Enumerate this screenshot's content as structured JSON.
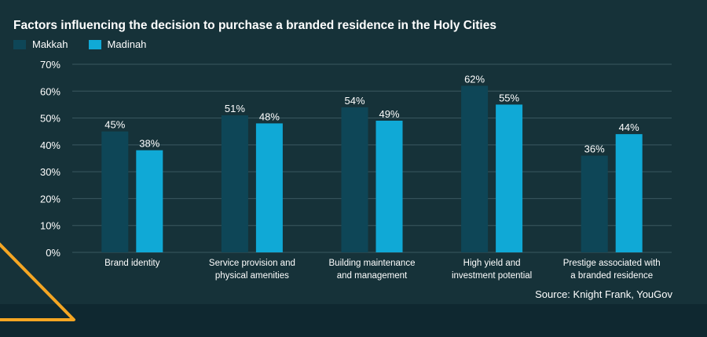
{
  "title": "Factors influencing the decision to purchase a branded residence in the Holy Cities",
  "source": "Source: Knight Frank, YouGov",
  "colors": {
    "makkah": "#0e4657",
    "madinah": "#10a9d6",
    "grid": "#3b5860",
    "text": "#ffffff",
    "accent": "#f5a623"
  },
  "chart_data": {
    "type": "bar",
    "title": "Factors influencing the decision to purchase a branded residence in the Holy Cities",
    "categories": [
      [
        "Brand identity"
      ],
      [
        "Service provision and",
        "physical amenities"
      ],
      [
        "Building maintenance",
        "and management"
      ],
      [
        "High yield and",
        "investment potential"
      ],
      [
        "Prestige associated with",
        "a branded residence"
      ]
    ],
    "series": [
      {
        "name": "Makkah",
        "values": [
          45,
          51,
          54,
          62,
          36
        ],
        "labels": [
          "45%",
          "51%",
          "54%",
          "62%",
          "36%"
        ]
      },
      {
        "name": "Madinah",
        "values": [
          38,
          48,
          49,
          55,
          44
        ],
        "labels": [
          "38%",
          "48%",
          "49%",
          "55%",
          "44%"
        ]
      }
    ],
    "yticks": [
      "70%",
      "60%",
      "50%",
      "40%",
      "30%",
      "20%",
      "10%",
      "0%"
    ],
    "ylim": [
      0,
      70
    ],
    "grid": true,
    "legend": "top-left"
  }
}
